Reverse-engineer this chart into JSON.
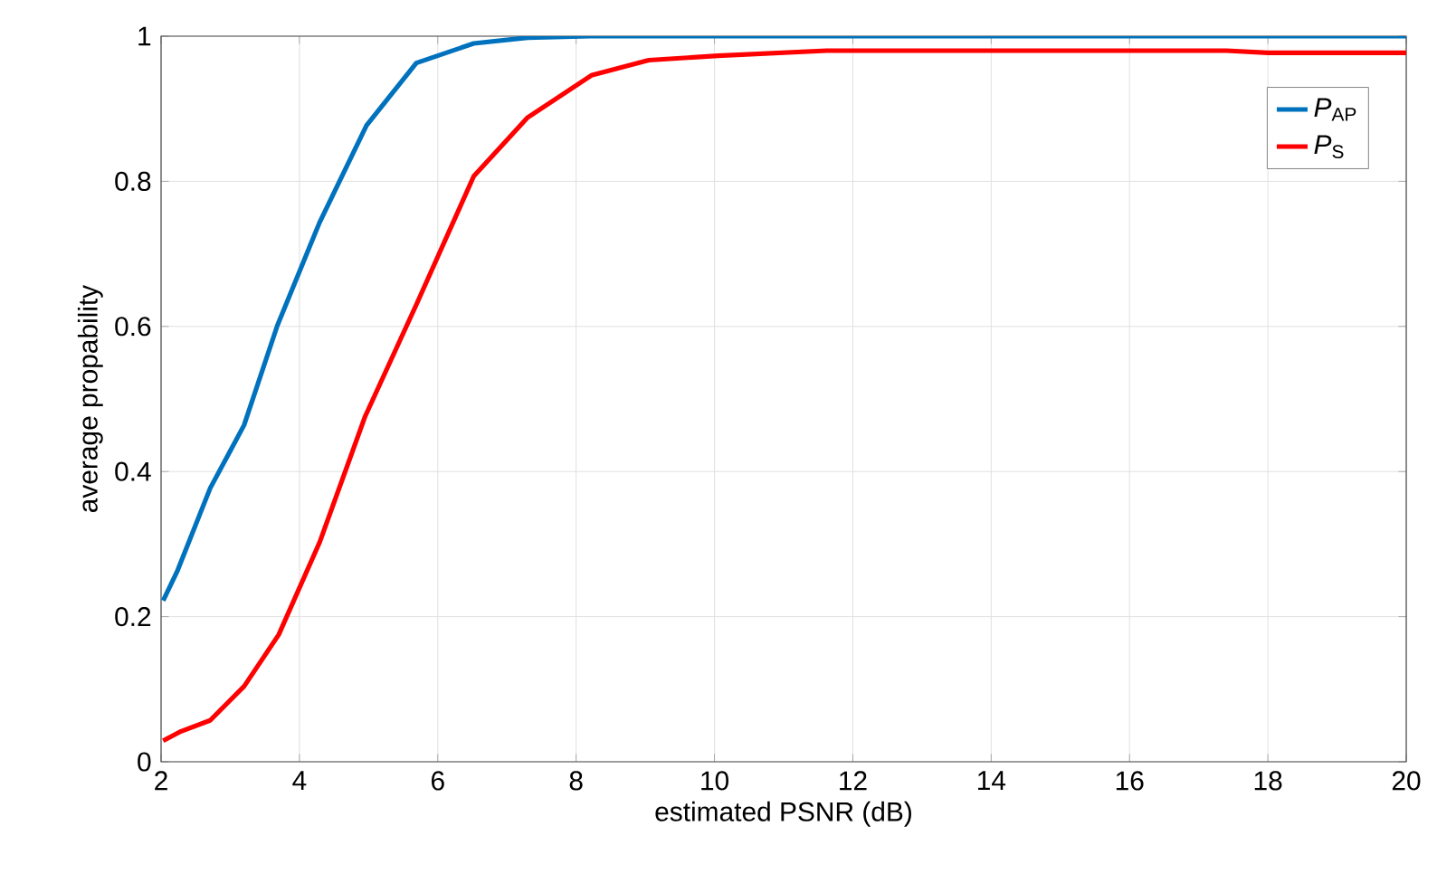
{
  "chart_data": {
    "type": "line",
    "xlabel": "estimated PSNR (dB)",
    "ylabel": "average propability",
    "xlim": [
      2,
      20
    ],
    "ylim": [
      0,
      1
    ],
    "xticks": [
      2,
      4,
      6,
      8,
      10,
      12,
      14,
      16,
      18,
      20
    ],
    "yticks": [
      0,
      0.2,
      0.4,
      0.6,
      0.8,
      1
    ],
    "grid": true,
    "legend": "top right",
    "line_style": "solid",
    "marker": "none",
    "series": [
      {
        "name": "*P*$_{AP}$",
        "color": "#0072bd",
        "x": [
          2.03,
          2.24,
          2.71,
          3.2,
          3.68,
          4.29,
          4.97,
          5.69,
          6.52,
          7.3,
          8.2,
          10,
          12,
          14,
          16,
          18,
          20
        ],
        "values": [
          0.222,
          0.264,
          0.377,
          0.464,
          0.601,
          0.743,
          0.877,
          0.963,
          0.99,
          0.998,
          1,
          1,
          1,
          1,
          1,
          1,
          1
        ]
      },
      {
        "name": "*P*$_{S}$",
        "color": "#ff0000",
        "x": [
          2.03,
          2.29,
          2.71,
          3.2,
          3.7,
          4.29,
          4.95,
          5.69,
          6.52,
          7.3,
          8.22,
          9.05,
          10.05,
          11.62,
          17.4,
          18.0,
          20
        ],
        "values": [
          0.029,
          0.042,
          0.057,
          0.104,
          0.175,
          0.302,
          0.476,
          0.63,
          0.807,
          0.888,
          0.946,
          0.967,
          0.973,
          0.98,
          0.98,
          0.977,
          0.977
        ]
      }
    ]
  }
}
